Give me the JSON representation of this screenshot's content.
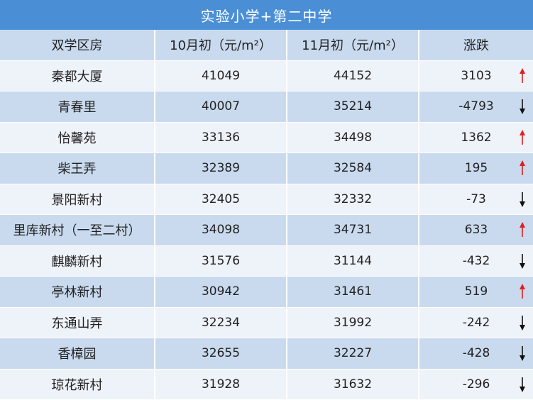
{
  "title": "实验小学+第二中学",
  "headers": {
    "name": "双学区房",
    "oct": "10月初（元/m²）",
    "nov": "11月初（元/m²）",
    "change": "涨跌"
  },
  "colors": {
    "up": "#e02020",
    "down": "#111111",
    "title_bg": "#4a8fd6"
  },
  "rows": [
    {
      "name": "秦都大厦",
      "oct": "41049",
      "nov": "44152",
      "change": "3103",
      "trend": "up"
    },
    {
      "name": "青春里",
      "oct": "40007",
      "nov": "35214",
      "change": "-4793",
      "trend": "down"
    },
    {
      "name": "怡馨苑",
      "oct": "33136",
      "nov": "34498",
      "change": "1362",
      "trend": "up"
    },
    {
      "name": "柴王弄",
      "oct": "32389",
      "nov": "32584",
      "change": "195",
      "trend": "up"
    },
    {
      "name": "景阳新村",
      "oct": "32405",
      "nov": "32332",
      "change": "-73",
      "trend": "down"
    },
    {
      "name": "里库新村（一至二村）",
      "oct": "34098",
      "nov": "34731",
      "change": "633",
      "trend": "up"
    },
    {
      "name": "麒麟新村",
      "oct": "31576",
      "nov": "31144",
      "change": "-432",
      "trend": "down"
    },
    {
      "name": "亭林新村",
      "oct": "30942",
      "nov": "31461",
      "change": "519",
      "trend": "up"
    },
    {
      "name": "东通山弄",
      "oct": "32234",
      "nov": "31992",
      "change": "-242",
      "trend": "down"
    },
    {
      "name": "香樟园",
      "oct": "32655",
      "nov": "32227",
      "change": "-428",
      "trend": "down"
    },
    {
      "name": "琼花新村",
      "oct": "31928",
      "nov": "31632",
      "change": "-296",
      "trend": "down"
    }
  ]
}
